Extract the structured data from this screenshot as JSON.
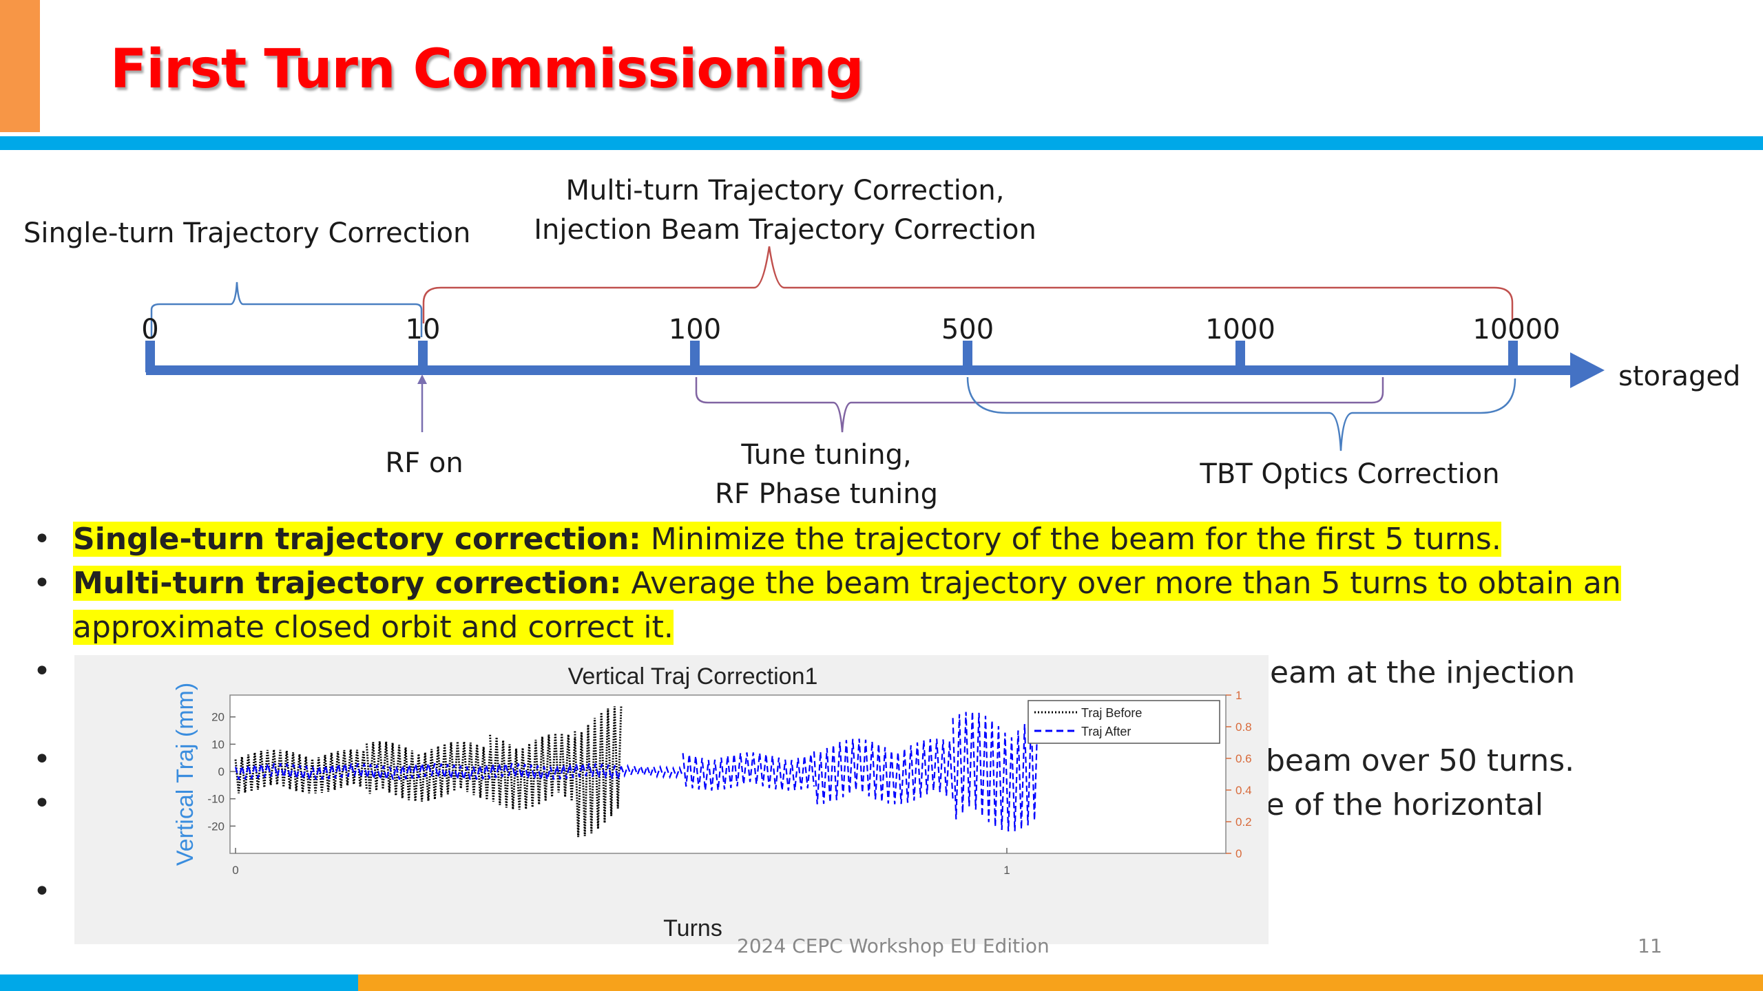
{
  "slide": {
    "title": "First Turn Commissioning",
    "page_number": "11",
    "footer": "2024 CEPC Workshop EU Edition"
  },
  "timeline": {
    "ticks": [
      "0",
      "10",
      "100",
      "500",
      "1000",
      "10000"
    ],
    "end_label": "storaged",
    "brace_labels": {
      "single_turn": "Single-turn Trajectory Correction",
      "multi_turn_line1": "Multi-turn Trajectory Correction,",
      "multi_turn_line2": "Injection Beam Trajectory Correction",
      "rf_on": "RF on",
      "tune_line1": "Tune tuning,",
      "tune_line2": "RF Phase tuning",
      "tbt": "TBT Optics Correction"
    }
  },
  "bullets": [
    {
      "bold": "Single-turn trajectory correction:",
      "text": " Minimize the trajectory of the beam for the first 5 turns."
    },
    {
      "bold": "Multi-turn trajectory correction:",
      "text": " Average the beam trajectory over more than 5 turns to obtain an approximate closed orbit and correct it."
    }
  ],
  "partial_lines": {
    "line1": "eam at the injection",
    "line2": "beam over 50 turns.",
    "line3": "e of the horizontal"
  },
  "chart_data": {
    "type": "line",
    "title": "Vertical Traj Correction1",
    "xlabel": "Turns",
    "ylabel": "Vertical Traj (mm)",
    "xlim": [
      0,
      1
    ],
    "x_ticks": [
      "0",
      "1"
    ],
    "ylim": [
      -30,
      28
    ],
    "y_ticks": [
      "20",
      "10",
      "0",
      "-10",
      "-20"
    ],
    "y2lim": [
      0,
      1
    ],
    "y2_ticks": [
      "1",
      "0.8",
      "0.6",
      "0.4",
      "0.2",
      "0"
    ],
    "legend_position": "top-right",
    "grid": false,
    "series": [
      {
        "name": "Traj Before",
        "color": "#000000",
        "style": "dotted",
        "segments": [
          {
            "x0": 0.0,
            "x1": 0.17,
            "amp": 8
          },
          {
            "x0": 0.17,
            "x1": 0.33,
            "amp": 11
          },
          {
            "x0": 0.33,
            "x1": 0.44,
            "amp": 14
          },
          {
            "x0": 0.44,
            "x1": 0.5,
            "amp": 24
          }
        ]
      },
      {
        "name": "Traj After",
        "color": "#0000FF",
        "style": "dashed",
        "segments": [
          {
            "x0": 0.0,
            "x1": 0.5,
            "amp": 3
          },
          {
            "x0": 0.5,
            "x1": 0.58,
            "amp": 2
          },
          {
            "x0": 0.58,
            "x1": 0.75,
            "amp": 7
          },
          {
            "x0": 0.75,
            "x1": 0.93,
            "amp": 12
          },
          {
            "x0": 0.93,
            "x1": 1.04,
            "amp": 22
          }
        ]
      }
    ]
  },
  "colors": {
    "title": "#FF0000",
    "accent_blue": "#00A8E8",
    "accent_orange": "#F7A21B",
    "timeline_blue": "#4472C4",
    "highlight": "#FFFF00"
  }
}
